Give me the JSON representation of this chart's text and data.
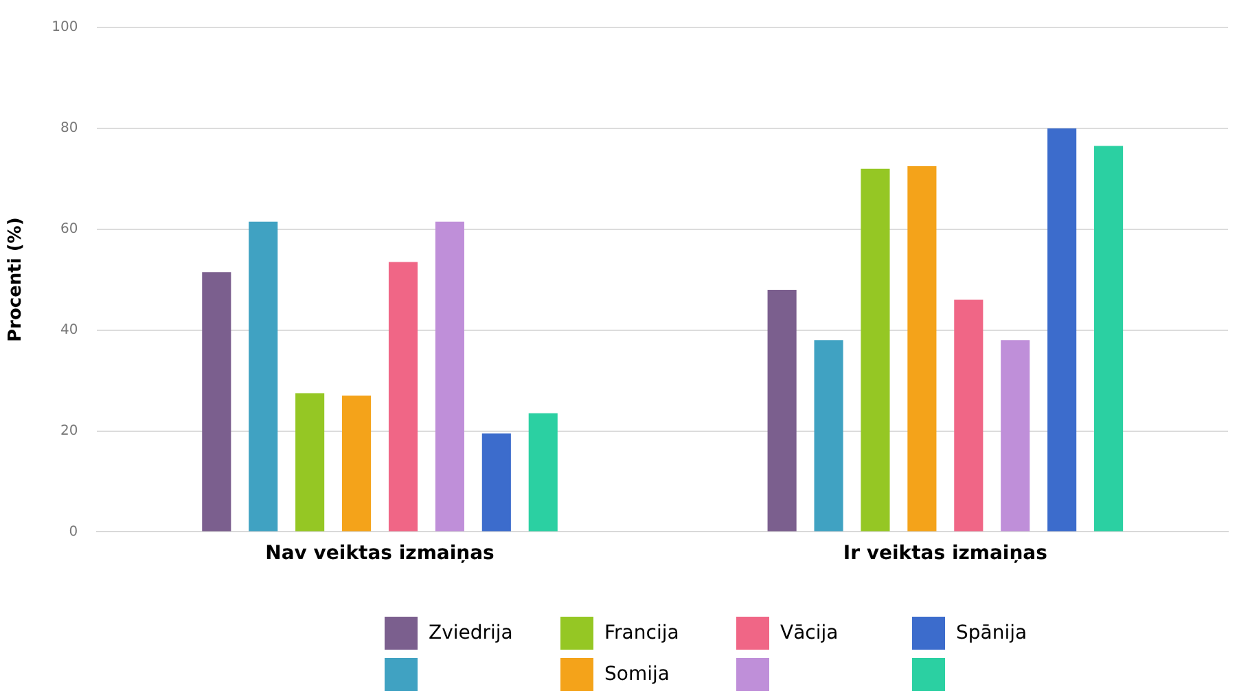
{
  "chart_data": {
    "type": "bar",
    "ylabel": "Procenti (%)",
    "categories": [
      "Nav veiktas izmaiņas",
      "Ir veiktas izmaiņas"
    ],
    "series": [
      {
        "name": "Zviedrija",
        "color": "#7b5f8e",
        "values": [
          51.5,
          48
        ]
      },
      {
        "color": "#40a2c2",
        "values": [
          61.5,
          38
        ]
      },
      {
        "name": "Francija",
        "color": "#95c724",
        "values": [
          27.5,
          72
        ]
      },
      {
        "name": "Somija",
        "color": "#f4a31a",
        "values": [
          27,
          72.5
        ]
      },
      {
        "name": "Vācija",
        "color": "#f06686",
        "values": [
          53.5,
          46
        ]
      },
      {
        "color": "#bf8fd9",
        "values": [
          61.5,
          38
        ]
      },
      {
        "name": "Spānija",
        "color": "#3c6ccc",
        "values": [
          19.5,
          80
        ]
      },
      {
        "color": "#2bd0a2",
        "values": [
          23.5,
          76.5
        ]
      }
    ],
    "ylim": [
      0,
      100
    ],
    "yticks": [
      0,
      20,
      40,
      60,
      80,
      100
    ],
    "grid": "y",
    "legend": "bottom"
  }
}
